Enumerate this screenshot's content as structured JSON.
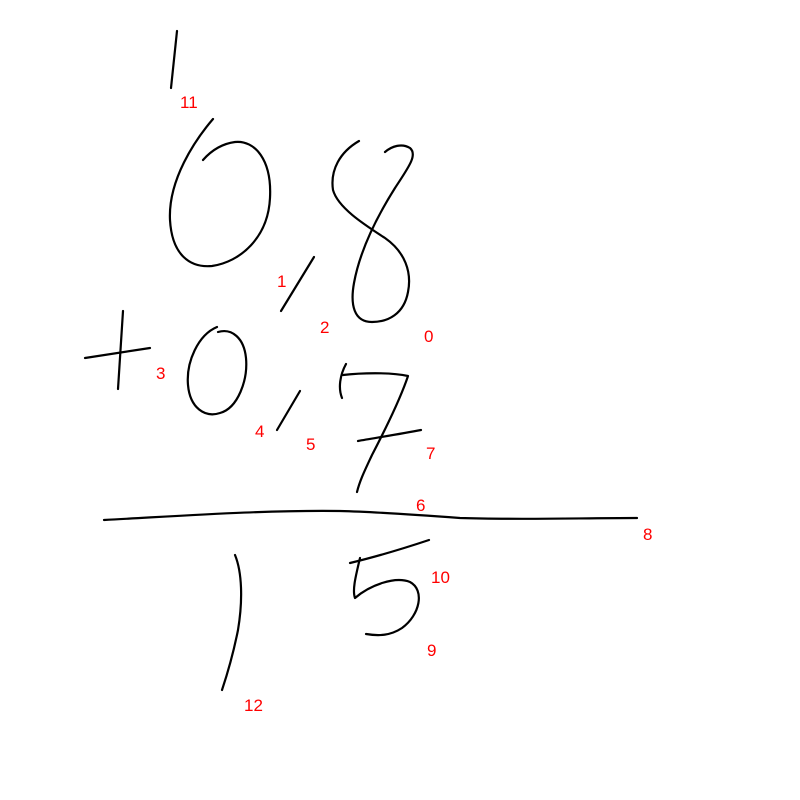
{
  "colors": {
    "ink": "#000000",
    "label": "#ff0000",
    "background": "#ffffff"
  },
  "stroke_labels": [
    "0",
    "1",
    "2",
    "3",
    "4",
    "5",
    "6",
    "7",
    "8",
    "9",
    "10",
    "11",
    "12"
  ]
}
